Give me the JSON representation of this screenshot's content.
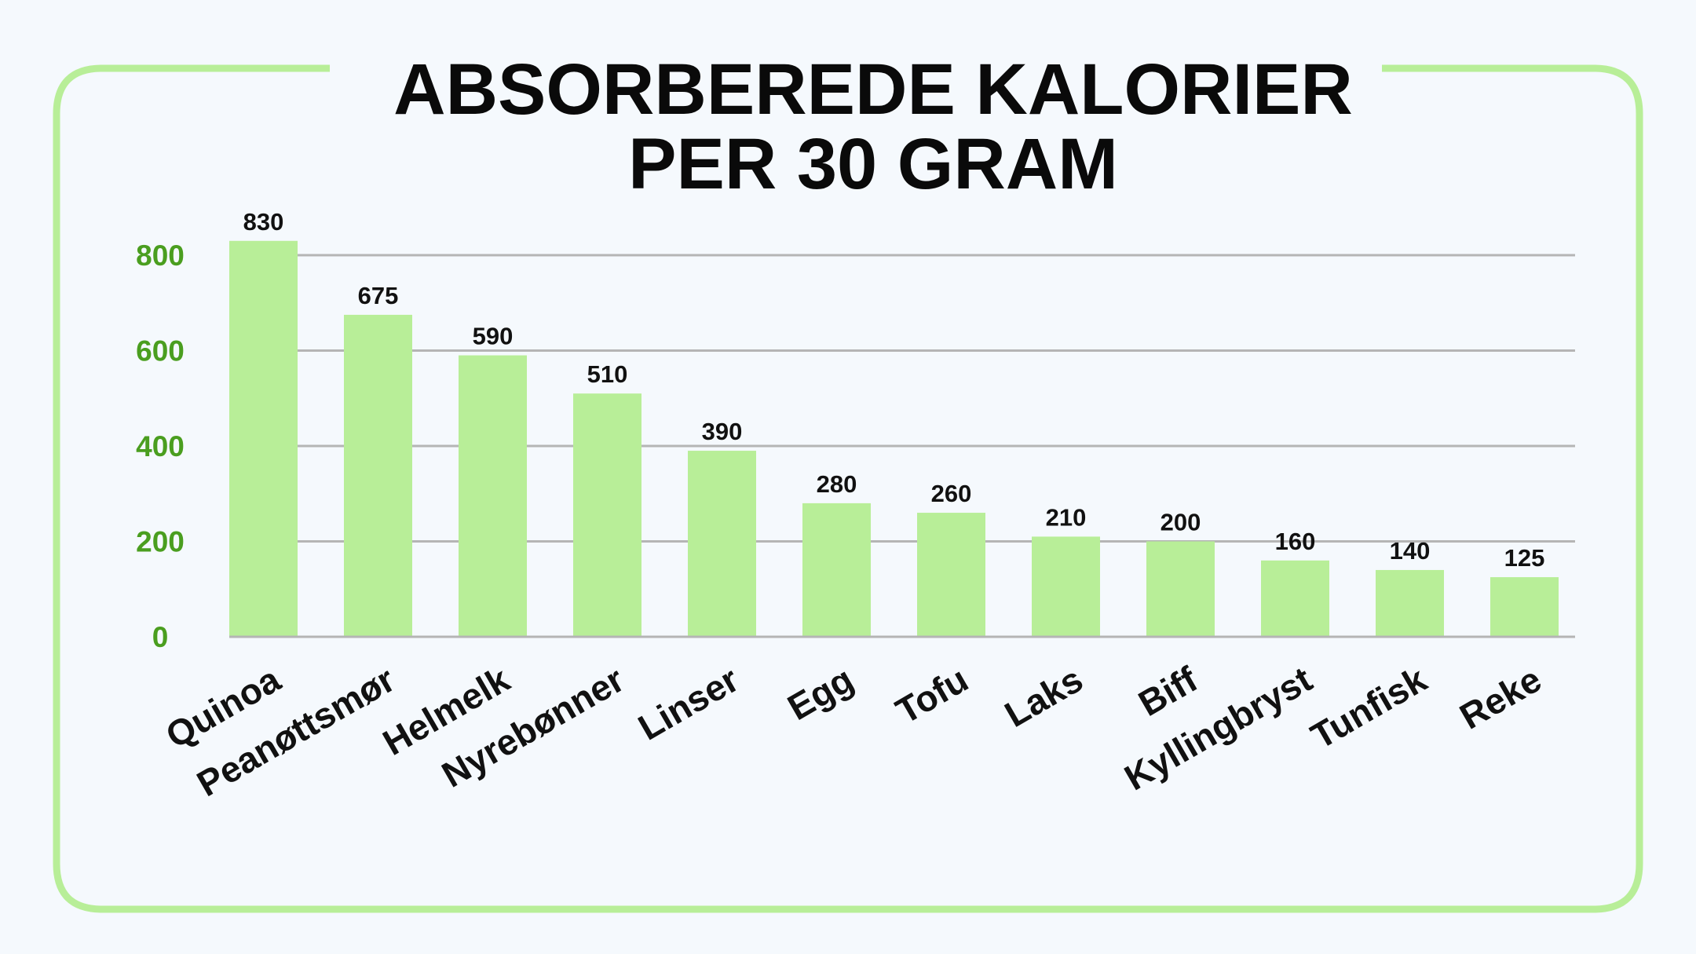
{
  "chart_data": {
    "type": "bar",
    "title_lines": [
      "ABSORBEREDE KALORIER",
      "PER 30 GRAM"
    ],
    "categories": [
      "Quinoa",
      "Peanøttsmør",
      "Helmelk",
      "Nyrebønner",
      "Linser",
      "Egg",
      "Tofu",
      "Laks",
      "Biff",
      "Kyllingbryst",
      "Tunfisk",
      "Reke"
    ],
    "values": [
      830,
      675,
      590,
      510,
      390,
      280,
      260,
      210,
      200,
      160,
      140,
      125
    ],
    "value_labels": [
      "830",
      "675",
      "590",
      "510",
      "390",
      "280",
      "260",
      "210",
      "200",
      "160",
      "140",
      "125"
    ],
    "y_ticks": [
      0,
      200,
      400,
      600,
      800
    ],
    "y_tick_labels": [
      "0",
      "200",
      "400",
      "600",
      "800"
    ],
    "ylim": [
      0,
      800
    ],
    "xlabel": "",
    "ylabel": "",
    "grid": true,
    "colors": {
      "bar": "#b8ee98",
      "frame": "#b8ee98",
      "tick_label": "#4a9e1f",
      "grid": "#b5b5b5",
      "background": "#f5f9fd"
    }
  }
}
